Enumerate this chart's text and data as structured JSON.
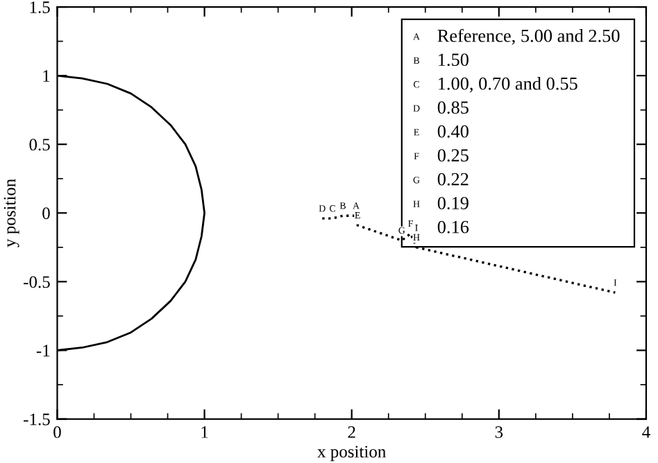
{
  "chart_data": {
    "type": "line",
    "xlabel": "x position",
    "ylabel": "y position",
    "xlim": [
      0,
      4
    ],
    "ylim": [
      -1.5,
      1.5
    ],
    "xticks": [
      0,
      1,
      2,
      3,
      4
    ],
    "yticks": [
      -1.5,
      -1,
      -0.5,
      0,
      0.5,
      1,
      1.5
    ],
    "grid": false,
    "legend": false,
    "series": [
      {
        "color": "#000000",
        "line_style": "solid",
        "x": [
          0,
          0.17,
          0.34,
          0.5,
          0.64,
          0.77,
          0.87,
          0.94,
          0.98,
          1,
          0.98,
          0.94,
          0.87,
          0.77,
          0.64,
          0.5,
          0.34,
          0.17,
          0
        ],
        "values": [
          1,
          0.98,
          0.94,
          0.87,
          0.77,
          0.64,
          0.5,
          0.34,
          0.17,
          0,
          -0.17,
          -0.34,
          -0.5,
          -0.64,
          -0.77,
          -0.87,
          -0.94,
          -0.98,
          -1
        ]
      },
      {
        "color": "#000000",
        "line_style": "dotted",
        "marker": "none",
        "x": [
          1.8,
          1.87,
          1.94,
          2.03,
          2.04,
          2.34,
          2.4,
          2.44,
          3.79
        ],
        "values": [
          -0.04,
          -0.04,
          -0.02,
          -0.02,
          -0.09,
          -0.2,
          -0.15,
          -0.25,
          -0.58
        ]
      }
    ],
    "annotations": [
      {
        "text": "A",
        "x": 2.03,
        "y": -0.02
      },
      {
        "text": "B",
        "x": 1.94,
        "y": -0.02
      },
      {
        "text": "C",
        "x": 1.87,
        "y": -0.04
      },
      {
        "text": "D",
        "x": 1.8,
        "y": -0.04
      },
      {
        "text": "E",
        "x": 2.04,
        "y": -0.09
      },
      {
        "text": "F",
        "x": 2.4,
        "y": -0.15
      },
      {
        "text": "G",
        "x": 2.34,
        "y": -0.2
      },
      {
        "text": "H",
        "x": 2.44,
        "y": -0.25
      },
      {
        "text": "I",
        "x": 3.79,
        "y": -0.58
      },
      "A",
      "Reference, 5.00 and 2.50",
      "B",
      "1.50",
      "C",
      "1.00, 0.70 and 0.55",
      "D",
      "0.85",
      "E",
      "0.40",
      "F",
      "0.25",
      "G",
      "0.22",
      "H",
      "0.19",
      "I",
      "0.16"
    ]
  }
}
